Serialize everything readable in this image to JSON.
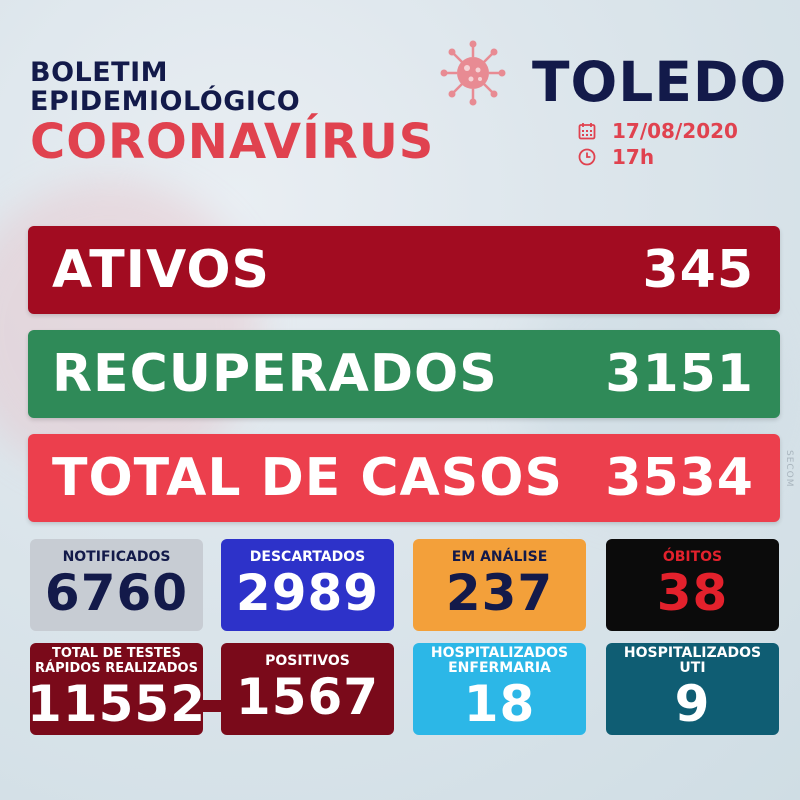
{
  "header": {
    "line1": "BOLETIM",
    "line2": "EPIDEMIOLÓGICO",
    "line3": "CORONAVÍRUS",
    "city": "TOLEDO",
    "date": "17/08/2020",
    "time": "17h"
  },
  "bars": {
    "ativos": {
      "label": "ATIVOS",
      "value": "345"
    },
    "recuperados": {
      "label": "RECUPERADOS",
      "value": "3151"
    },
    "total": {
      "label": "TOTAL DE CASOS",
      "value": "3534"
    }
  },
  "cards": {
    "notificados": {
      "label": "NOTIFICADOS",
      "value": "6760"
    },
    "descartados": {
      "label": "DESCARTADOS",
      "value": "2989"
    },
    "analise": {
      "label": "EM ANÁLISE",
      "value": "237"
    },
    "obitos": {
      "label": "ÓBITOS",
      "value": "38"
    },
    "testes": {
      "label1": "TOTAL DE TESTES",
      "label2": "RÁPIDOS REALIZADOS",
      "value": "11552"
    },
    "positivos": {
      "label": "POSITIVOS",
      "value": "1567"
    },
    "enfermaria": {
      "label1": "HOSPITALIZADOS",
      "label2": "ENFERMARIA",
      "value": "18"
    },
    "uti": {
      "label1": "HOSPITALIZADOS",
      "label2": "UTI",
      "value": "9"
    }
  },
  "watermark": "SECOM",
  "icons": [
    "virus-icon",
    "calendar-icon",
    "clock-icon"
  ],
  "colors": {
    "navy": "#131a4a",
    "red": "#e0424f",
    "ativos": "#a20c21",
    "recuperados": "#2f8a58",
    "total": "#ec3f4d"
  }
}
